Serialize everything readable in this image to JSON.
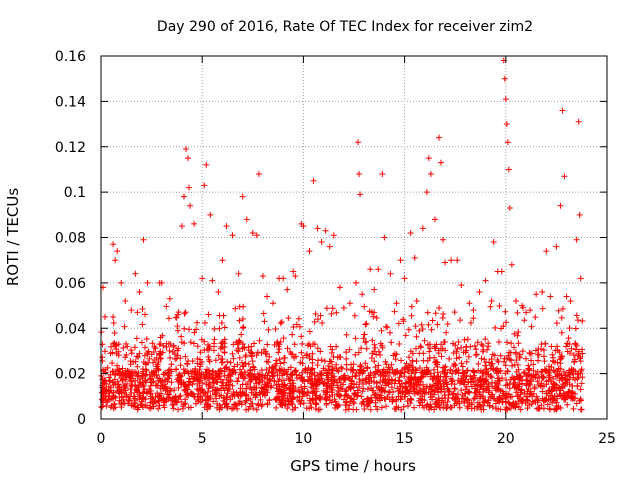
{
  "chart_data": {
    "type": "scatter",
    "title": "Day 290 of 2016, Rate Of TEC Index for receiver zim2",
    "xlabel": "GPS time / hours",
    "ylabel": "ROTI / TECUs",
    "xlim": [
      0,
      25
    ],
    "ylim": [
      0,
      0.16
    ],
    "xticks": [
      0,
      5,
      10,
      15,
      20,
      25
    ],
    "xtick_labels": [
      "0",
      "5",
      "10",
      "15",
      "20",
      "25"
    ],
    "yticks": [
      0,
      0.02,
      0.04,
      0.06,
      0.08,
      0.1,
      0.12,
      0.14,
      0.16
    ],
    "ytick_labels": [
      "0",
      "0.02",
      "0.04",
      "0.06",
      "0.08",
      "0.1",
      "0.12",
      "0.14",
      "0.16"
    ],
    "grid": true,
    "marker": "+",
    "color": "#ff0000",
    "series": [
      {
        "name": "ROTI",
        "points": [
          [
            0.1,
            0.058
          ],
          [
            0.2,
            0.045
          ],
          [
            0.6,
            0.077
          ],
          [
            0.7,
            0.07
          ],
          [
            0.8,
            0.074
          ],
          [
            1.0,
            0.06
          ],
          [
            1.2,
            0.052
          ],
          [
            1.5,
            0.048
          ],
          [
            1.7,
            0.064
          ],
          [
            1.8,
            0.047
          ],
          [
            1.9,
            0.056
          ],
          [
            2.1,
            0.079
          ],
          [
            2.3,
            0.06
          ],
          [
            2.9,
            0.06
          ],
          [
            3.0,
            0.06
          ],
          [
            3.4,
            0.053
          ],
          [
            3.8,
            0.046
          ],
          [
            4.0,
            0.085
          ],
          [
            4.1,
            0.098
          ],
          [
            4.2,
            0.119
          ],
          [
            4.3,
            0.115
          ],
          [
            4.35,
            0.102
          ],
          [
            4.4,
            0.094
          ],
          [
            4.6,
            0.086
          ],
          [
            5.0,
            0.062
          ],
          [
            5.1,
            0.103
          ],
          [
            5.2,
            0.112
          ],
          [
            5.4,
            0.09
          ],
          [
            5.5,
            0.061
          ],
          [
            5.8,
            0.056
          ],
          [
            6.0,
            0.07
          ],
          [
            6.2,
            0.085
          ],
          [
            6.5,
            0.081
          ],
          [
            6.8,
            0.064
          ],
          [
            7.0,
            0.098
          ],
          [
            7.2,
            0.088
          ],
          [
            7.5,
            0.082
          ],
          [
            7.7,
            0.081
          ],
          [
            7.8,
            0.108
          ],
          [
            8.0,
            0.063
          ],
          [
            8.2,
            0.054
          ],
          [
            8.5,
            0.051
          ],
          [
            8.8,
            0.062
          ],
          [
            9.0,
            0.062
          ],
          [
            9.2,
            0.057
          ],
          [
            9.5,
            0.065
          ],
          [
            9.6,
            0.063
          ],
          [
            9.9,
            0.086
          ],
          [
            10.0,
            0.085
          ],
          [
            10.3,
            0.074
          ],
          [
            10.5,
            0.105
          ],
          [
            10.7,
            0.084
          ],
          [
            10.9,
            0.078
          ],
          [
            11.1,
            0.083
          ],
          [
            11.3,
            0.076
          ],
          [
            11.5,
            0.081
          ],
          [
            11.8,
            0.058
          ],
          [
            12.0,
            0.049
          ],
          [
            12.3,
            0.051
          ],
          [
            12.6,
            0.06
          ],
          [
            12.7,
            0.122
          ],
          [
            12.75,
            0.108
          ],
          [
            12.8,
            0.099
          ],
          [
            12.9,
            0.055
          ],
          [
            13.3,
            0.066
          ],
          [
            13.5,
            0.057
          ],
          [
            13.7,
            0.066
          ],
          [
            13.9,
            0.108
          ],
          [
            14.0,
            0.08
          ],
          [
            14.3,
            0.064
          ],
          [
            14.6,
            0.051
          ],
          [
            14.8,
            0.07
          ],
          [
            15.0,
            0.062
          ],
          [
            15.3,
            0.082
          ],
          [
            15.5,
            0.071
          ],
          [
            15.6,
            0.052
          ],
          [
            15.9,
            0.084
          ],
          [
            16.1,
            0.1
          ],
          [
            16.2,
            0.115
          ],
          [
            16.3,
            0.108
          ],
          [
            16.5,
            0.088
          ],
          [
            16.7,
            0.124
          ],
          [
            16.8,
            0.113
          ],
          [
            16.9,
            0.079
          ],
          [
            17.0,
            0.069
          ],
          [
            17.3,
            0.07
          ],
          [
            17.6,
            0.07
          ],
          [
            17.8,
            0.059
          ],
          [
            18.2,
            0.051
          ],
          [
            18.4,
            0.048
          ],
          [
            18.7,
            0.056
          ],
          [
            19.0,
            0.061
          ],
          [
            19.3,
            0.052
          ],
          [
            19.4,
            0.078
          ],
          [
            19.6,
            0.065
          ],
          [
            19.8,
            0.065
          ],
          [
            19.9,
            0.158
          ],
          [
            19.95,
            0.15
          ],
          [
            20.0,
            0.141
          ],
          [
            20.05,
            0.13
          ],
          [
            20.1,
            0.122
          ],
          [
            20.15,
            0.11
          ],
          [
            20.2,
            0.093
          ],
          [
            20.3,
            0.068
          ],
          [
            20.5,
            0.052
          ],
          [
            20.8,
            0.05
          ],
          [
            21.0,
            0.047
          ],
          [
            21.2,
            0.048
          ],
          [
            21.5,
            0.055
          ],
          [
            21.8,
            0.056
          ],
          [
            22.0,
            0.074
          ],
          [
            22.2,
            0.054
          ],
          [
            22.5,
            0.076
          ],
          [
            22.7,
            0.094
          ],
          [
            22.8,
            0.136
          ],
          [
            22.9,
            0.107
          ],
          [
            23.0,
            0.054
          ],
          [
            23.2,
            0.052
          ],
          [
            23.5,
            0.079
          ],
          [
            23.6,
            0.131
          ],
          [
            23.65,
            0.09
          ],
          [
            23.7,
            0.062
          ]
        ]
      }
    ]
  }
}
